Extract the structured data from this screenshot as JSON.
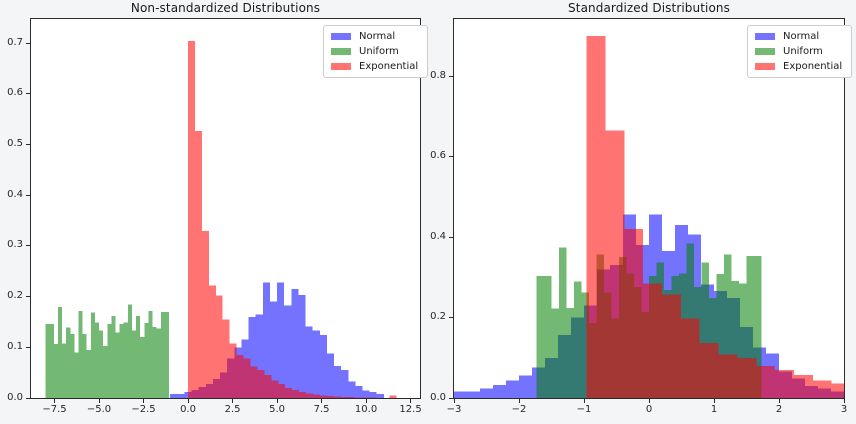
{
  "figure": {
    "background": "#f4f5f6",
    "axes_background": "#ffffff",
    "spine_color": "#2b2b2b",
    "text_color": "#262626"
  },
  "chart_data": [
    {
      "type": "bar",
      "subtype": "histogram-overlay",
      "title": "Non-standardized Distributions",
      "grid": false,
      "legend_position": "upper right",
      "xlim": [
        -8.82,
        13.03
      ],
      "ylim": [
        0,
        0.748
      ],
      "xticks": {
        "values": [
          -7.5,
          -5.0,
          -2.5,
          0.0,
          2.5,
          5.0,
          7.5,
          10.0,
          12.5
        ],
        "labels": [
          "−7.5",
          "−5.0",
          "−2.5",
          "0.0",
          "2.5",
          "5.0",
          "7.5",
          "10.0",
          "12.5"
        ]
      },
      "yticks": {
        "values": [
          0.0,
          0.1,
          0.2,
          0.3,
          0.4,
          0.5,
          0.6,
          0.7
        ],
        "labels": [
          "0.0",
          "0.1",
          "0.2",
          "0.3",
          "0.4",
          "0.5",
          "0.6",
          "0.7"
        ]
      },
      "series": [
        {
          "name": "Normal",
          "color": "rgba(0,0,255,0.55)",
          "bin_start": -1.0,
          "bin_width": 0.4,
          "heights": [
            0.008,
            0.008,
            0.012,
            0.016,
            0.022,
            0.028,
            0.038,
            0.05,
            0.078,
            0.1,
            0.115,
            0.16,
            0.165,
            0.228,
            0.19,
            0.228,
            0.183,
            0.215,
            0.203,
            0.141,
            0.133,
            0.124,
            0.088,
            0.063,
            0.055,
            0.033,
            0.024,
            0.015,
            0.012,
            0.008
          ]
        },
        {
          "name": "Uniform",
          "color": "rgba(0,128,0,0.55)",
          "bin_start": -8.0,
          "bin_width": 0.231,
          "heights": [
            0.146,
            0.146,
            0.107,
            0.18,
            0.108,
            0.139,
            0.126,
            0.09,
            0.172,
            0.126,
            0.095,
            0.169,
            0.149,
            0.133,
            0.103,
            0.146,
            0.162,
            0.129,
            0.146,
            0.149,
            0.185,
            0.133,
            0.162,
            0.12,
            0.148,
            0.172,
            0.14,
            0.137,
            0.17,
            0.17
          ]
        },
        {
          "name": "Exponential",
          "color": "rgba(255,0,0,0.55)",
          "bin_start": 0.0,
          "bin_width": 0.39,
          "heights": [
            0.705,
            0.527,
            0.33,
            0.222,
            0.202,
            0.155,
            0.108,
            0.085,
            0.078,
            0.062,
            0.055,
            0.045,
            0.035,
            0.028,
            0.02,
            0.016,
            0.012,
            0.009,
            0.007,
            0.005,
            0.004,
            0.003,
            0.002,
            0.002,
            0.001,
            0.001,
            0.001,
            0.0,
            0.0,
            0.005
          ]
        }
      ]
    },
    {
      "type": "bar",
      "subtype": "histogram-overlay",
      "title": "Standardized Distributions",
      "grid": false,
      "legend_position": "upper right",
      "xlim": [
        -3,
        3
      ],
      "ylim": [
        0,
        0.942
      ],
      "xticks": {
        "values": [
          -3,
          -2,
          -1,
          0,
          1,
          2,
          3
        ],
        "labels": [
          "−3",
          "−2",
          "−1",
          "0",
          "1",
          "2",
          "3"
        ]
      },
      "yticks": {
        "values": [
          0.0,
          0.2,
          0.4,
          0.6,
          0.8
        ],
        "labels": [
          "0.0",
          "0.2",
          "0.4",
          "0.6",
          "0.8"
        ]
      },
      "series": [
        {
          "name": "Normal",
          "color": "rgba(0,0,255,0.55)",
          "bin_start": -3.0,
          "bin_width": 0.2,
          "heights": [
            0.016,
            0.016,
            0.024,
            0.032,
            0.044,
            0.056,
            0.076,
            0.1,
            0.156,
            0.2,
            0.23,
            0.32,
            0.33,
            0.456,
            0.38,
            0.456,
            0.366,
            0.43,
            0.406,
            0.282,
            0.266,
            0.248,
            0.176,
            0.126,
            0.11,
            0.066,
            0.048,
            0.03,
            0.024,
            0.016
          ]
        },
        {
          "name": "Uniform",
          "color": "rgba(0,128,0,0.55)",
          "bin_start": -1.732,
          "bin_width": 0.1155,
          "heights": [
            0.303,
            0.303,
            0.222,
            0.374,
            0.224,
            0.289,
            0.262,
            0.187,
            0.357,
            0.262,
            0.197,
            0.351,
            0.31,
            0.276,
            0.214,
            0.303,
            0.337,
            0.268,
            0.303,
            0.31,
            0.384,
            0.276,
            0.337,
            0.249,
            0.308,
            0.357,
            0.291,
            0.285,
            0.353,
            0.353
          ]
        },
        {
          "name": "Exponential",
          "color": "rgba(255,0,0,0.55)",
          "bin_start": -0.96,
          "bin_width": 0.29,
          "heights": [
            0.9,
            0.665,
            0.42,
            0.285,
            0.257,
            0.197,
            0.137,
            0.108,
            0.099,
            0.079,
            0.07,
            0.057,
            0.044,
            0.036,
            0.025,
            0.02,
            0.015,
            0.011,
            0.009,
            0.006,
            0.005,
            0.004,
            0.003,
            0.003,
            0.001,
            0.001,
            0.001,
            0.0,
            0.0,
            0.006
          ]
        }
      ]
    }
  ]
}
